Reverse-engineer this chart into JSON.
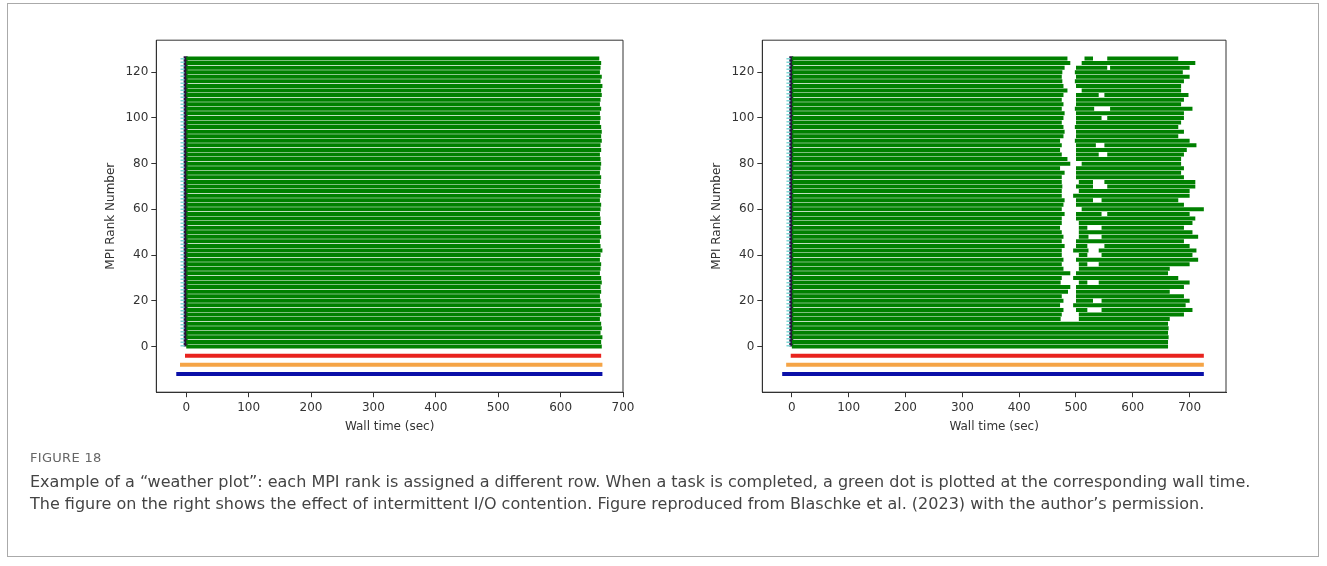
{
  "chart_data": [
    {
      "type": "line",
      "xlabel": "Wall time (sec)",
      "ylabel": "MPI Rank Number",
      "xlim": [
        -48,
        700
      ],
      "ylim": [
        -20,
        134
      ],
      "xticks": [
        0,
        100,
        200,
        300,
        400,
        500,
        600,
        700
      ],
      "yticks": [
        0,
        20,
        40,
        60,
        80,
        100,
        120
      ],
      "grid": false,
      "legend": false,
      "annotations": [
        "FIGURE 18",
        "Example of a “weather plot”: each MPI rank is assigned a different row. When a task is completed, a green dot is plotted at the corresponding wall time. The figure on the right shows the effect of intermittent I/O contention. Figure reproduced from  Blaschke et al. (2023) with the author’s permission."
      ],
      "series": [
        {
          "color": "#008000",
          "x": [
            0,
            666
          ],
          "values": [
            0,
            0
          ]
        },
        {
          "color": "#008000",
          "x": [
            0,
            665
          ],
          "values": [
            2,
            2
          ]
        },
        {
          "color": "#008000",
          "x": [
            0,
            667
          ],
          "values": [
            4,
            4
          ]
        },
        {
          "color": "#008000",
          "x": [
            0,
            664
          ],
          "values": [
            6,
            6
          ]
        },
        {
          "color": "#008000",
          "x": [
            0,
            666
          ],
          "values": [
            8,
            8
          ]
        },
        {
          "color": "#008000",
          "x": [
            0,
            665
          ],
          "values": [
            10,
            10
          ]
        },
        {
          "color": "#008000",
          "x": [
            0,
            663
          ],
          "values": [
            12,
            12
          ]
        },
        {
          "color": "#008000",
          "x": [
            0,
            665
          ],
          "values": [
            14,
            14
          ]
        },
        {
          "color": "#008000",
          "x": [
            0,
            664
          ],
          "values": [
            16,
            16
          ]
        },
        {
          "color": "#008000",
          "x": [
            0,
            666
          ],
          "values": [
            18,
            18
          ]
        },
        {
          "color": "#008000",
          "x": [
            0,
            664
          ],
          "values": [
            20,
            20
          ]
        },
        {
          "color": "#008000",
          "x": [
            0,
            663
          ],
          "values": [
            22,
            22
          ]
        },
        {
          "color": "#008000",
          "x": [
            0,
            665
          ],
          "values": [
            24,
            24
          ]
        },
        {
          "color": "#008000",
          "x": [
            0,
            664
          ],
          "values": [
            26,
            26
          ]
        },
        {
          "color": "#008000",
          "x": [
            0,
            666
          ],
          "values": [
            28,
            28
          ]
        },
        {
          "color": "#008000",
          "x": [
            0,
            665
          ],
          "values": [
            30,
            30
          ]
        },
        {
          "color": "#008000",
          "x": [
            0,
            663
          ],
          "values": [
            32,
            32
          ]
        },
        {
          "color": "#008000",
          "x": [
            0,
            664
          ],
          "values": [
            34,
            34
          ]
        },
        {
          "color": "#008000",
          "x": [
            0,
            665
          ],
          "values": [
            36,
            36
          ]
        },
        {
          "color": "#008000",
          "x": [
            0,
            663
          ],
          "values": [
            38,
            38
          ]
        },
        {
          "color": "#008000",
          "x": [
            0,
            664
          ],
          "values": [
            40,
            40
          ]
        },
        {
          "color": "#008000",
          "x": [
            0,
            667
          ],
          "values": [
            42,
            42
          ]
        },
        {
          "color": "#008000",
          "x": [
            0,
            664
          ],
          "values": [
            44,
            44
          ]
        },
        {
          "color": "#008000",
          "x": [
            0,
            663
          ],
          "values": [
            46,
            46
          ]
        },
        {
          "color": "#008000",
          "x": [
            0,
            665
          ],
          "values": [
            48,
            48
          ]
        },
        {
          "color": "#008000",
          "x": [
            0,
            664
          ],
          "values": [
            50,
            50
          ]
        },
        {
          "color": "#008000",
          "x": [
            0,
            663
          ],
          "values": [
            52,
            52
          ]
        },
        {
          "color": "#008000",
          "x": [
            0,
            665
          ],
          "values": [
            54,
            54
          ]
        },
        {
          "color": "#008000",
          "x": [
            0,
            664
          ],
          "values": [
            56,
            56
          ]
        },
        {
          "color": "#008000",
          "x": [
            0,
            663
          ],
          "values": [
            58,
            58
          ]
        },
        {
          "color": "#008000",
          "x": [
            0,
            664
          ],
          "values": [
            60,
            60
          ]
        },
        {
          "color": "#008000",
          "x": [
            0,
            665
          ],
          "values": [
            62,
            62
          ]
        },
        {
          "color": "#008000",
          "x": [
            0,
            663
          ],
          "values": [
            64,
            64
          ]
        },
        {
          "color": "#008000",
          "x": [
            0,
            664
          ],
          "values": [
            66,
            66
          ]
        },
        {
          "color": "#008000",
          "x": [
            0,
            665
          ],
          "values": [
            68,
            68
          ]
        },
        {
          "color": "#008000",
          "x": [
            0,
            663
          ],
          "values": [
            70,
            70
          ]
        },
        {
          "color": "#008000",
          "x": [
            0,
            664
          ],
          "values": [
            72,
            72
          ]
        },
        {
          "color": "#008000",
          "x": [
            0,
            665
          ],
          "values": [
            74,
            74
          ]
        },
        {
          "color": "#008000",
          "x": [
            0,
            663
          ],
          "values": [
            76,
            76
          ]
        },
        {
          "color": "#008000",
          "x": [
            0,
            664
          ],
          "values": [
            78,
            78
          ]
        },
        {
          "color": "#008000",
          "x": [
            0,
            665
          ],
          "values": [
            80,
            80
          ]
        },
        {
          "color": "#008000",
          "x": [
            0,
            664
          ],
          "values": [
            82,
            82
          ]
        },
        {
          "color": "#008000",
          "x": [
            0,
            663
          ],
          "values": [
            84,
            84
          ]
        },
        {
          "color": "#008000",
          "x": [
            0,
            665
          ],
          "values": [
            86,
            86
          ]
        },
        {
          "color": "#008000",
          "x": [
            0,
            664
          ],
          "values": [
            88,
            88
          ]
        },
        {
          "color": "#008000",
          "x": [
            0,
            666
          ],
          "values": [
            90,
            90
          ]
        },
        {
          "color": "#008000",
          "x": [
            0,
            665
          ],
          "values": [
            92,
            92
          ]
        },
        {
          "color": "#008000",
          "x": [
            0,
            666
          ],
          "values": [
            94,
            94
          ]
        },
        {
          "color": "#008000",
          "x": [
            0,
            665
          ],
          "values": [
            96,
            96
          ]
        },
        {
          "color": "#008000",
          "x": [
            0,
            663
          ],
          "values": [
            98,
            98
          ]
        },
        {
          "color": "#008000",
          "x": [
            0,
            664
          ],
          "values": [
            100,
            100
          ]
        },
        {
          "color": "#008000",
          "x": [
            0,
            663
          ],
          "values": [
            102,
            102
          ]
        },
        {
          "color": "#008000",
          "x": [
            0,
            665
          ],
          "values": [
            104,
            104
          ]
        },
        {
          "color": "#008000",
          "x": [
            0,
            663
          ],
          "values": [
            106,
            106
          ]
        },
        {
          "color": "#008000",
          "x": [
            0,
            664
          ],
          "values": [
            108,
            108
          ]
        },
        {
          "color": "#008000",
          "x": [
            0,
            666
          ],
          "values": [
            110,
            110
          ]
        },
        {
          "color": "#008000",
          "x": [
            0,
            665
          ],
          "values": [
            112,
            112
          ]
        },
        {
          "color": "#008000",
          "x": [
            0,
            667
          ],
          "values": [
            114,
            114
          ]
        },
        {
          "color": "#008000",
          "x": [
            0,
            664
          ],
          "values": [
            116,
            116
          ]
        },
        {
          "color": "#008000",
          "x": [
            0,
            666
          ],
          "values": [
            118,
            118
          ]
        },
        {
          "color": "#008000",
          "x": [
            0,
            663
          ],
          "values": [
            120,
            120
          ]
        },
        {
          "color": "#008000",
          "x": [
            0,
            664
          ],
          "values": [
            122,
            122
          ]
        },
        {
          "color": "#008000",
          "x": [
            0,
            665
          ],
          "values": [
            124,
            124
          ]
        },
        {
          "color": "#008000",
          "x": [
            0,
            662
          ],
          "values": [
            126,
            126
          ]
        },
        {
          "color": "#7fd6d6",
          "line_style": "dotted",
          "x": [
            -6,
            -6
          ],
          "values": [
            0,
            127
          ]
        },
        {
          "color": "#2a1040",
          "x": [
            -1,
            -1
          ],
          "values": [
            0,
            127
          ]
        },
        {
          "color": "#e8231e",
          "x": [
            -2,
            665
          ],
          "values": [
            -4,
            -4
          ]
        },
        {
          "color": "#f5a446",
          "x": [
            -10,
            667
          ],
          "values": [
            -8,
            -8
          ]
        },
        {
          "color": "#0a10a8",
          "x": [
            -16,
            667
          ],
          "values": [
            -12,
            -12
          ]
        }
      ]
    },
    {
      "type": "line",
      "xlabel": "Wall time (sec)",
      "ylabel": "MPI Rank Number",
      "xlim": [
        -52,
        764
      ],
      "ylim": [
        -20,
        134
      ],
      "xticks": [
        0,
        100,
        200,
        300,
        400,
        500,
        600,
        700
      ],
      "yticks": [
        0,
        20,
        40,
        60,
        80,
        100,
        120
      ],
      "grid": false,
      "legend": false,
      "series": [
        {
          "color": "#008000",
          "x": [
            0,
            662
          ],
          "values": [
            0,
            0
          ]
        },
        {
          "color": "#008000",
          "x": [
            0,
            662
          ],
          "values": [
            2,
            2
          ]
        },
        {
          "color": "#008000",
          "x": [
            0,
            663
          ],
          "values": [
            4,
            4
          ]
        },
        {
          "color": "#008000",
          "x": [
            0,
            662
          ],
          "values": [
            6,
            6
          ]
        },
        {
          "color": "#008000",
          "x": [
            0,
            663
          ],
          "values": [
            8,
            8
          ]
        },
        {
          "color": "#008000",
          "x": [
            0,
            662
          ],
          "values": [
            10,
            10
          ]
        },
        {
          "color": "#008000",
          "x": [
            0,
            473,
            null,
            505,
            665
          ],
          "values": [
            12,
            12,
            null,
            12,
            12
          ]
        },
        {
          "color": "#008000",
          "x": [
            0,
            475,
            null,
            505,
            690
          ],
          "values": [
            14,
            14,
            null,
            14,
            14
          ]
        },
        {
          "color": "#008000",
          "x": [
            0,
            478,
            null,
            500,
            520,
            null,
            545,
            705
          ],
          "values": [
            16,
            16,
            null,
            16,
            16,
            null,
            16,
            16
          ]
        },
        {
          "color": "#008000",
          "x": [
            0,
            472,
            null,
            495,
            693
          ],
          "values": [
            18,
            18,
            null,
            18,
            18
          ]
        },
        {
          "color": "#008000",
          "x": [
            0,
            478,
            null,
            500,
            530,
            null,
            545,
            700
          ],
          "values": [
            20,
            20,
            null,
            20,
            20,
            null,
            20,
            20
          ]
        },
        {
          "color": "#008000",
          "x": [
            0,
            475,
            null,
            500,
            690
          ],
          "values": [
            22,
            22,
            null,
            22,
            22
          ]
        },
        {
          "color": "#008000",
          "x": [
            0,
            486,
            null,
            500,
            665
          ],
          "values": [
            24,
            24,
            null,
            24,
            24
          ]
        },
        {
          "color": "#008000",
          "x": [
            0,
            490,
            null,
            500,
            690
          ],
          "values": [
            26,
            26,
            null,
            26,
            26
          ]
        },
        {
          "color": "#008000",
          "x": [
            0,
            473,
            null,
            505,
            520,
            null,
            540,
            700
          ],
          "values": [
            28,
            28,
            null,
            28,
            28,
            null,
            28,
            28
          ]
        },
        {
          "color": "#008000",
          "x": [
            0,
            475,
            null,
            495,
            680
          ],
          "values": [
            30,
            30,
            null,
            30,
            30
          ]
        },
        {
          "color": "#008000",
          "x": [
            0,
            490,
            null,
            500,
            662
          ],
          "values": [
            32,
            32,
            null,
            32,
            32
          ]
        },
        {
          "color": "#008000",
          "x": [
            0,
            478,
            null,
            505,
            665
          ],
          "values": [
            34,
            34,
            null,
            34,
            34
          ]
        },
        {
          "color": "#008000",
          "x": [
            0,
            475,
            null,
            505,
            520,
            null,
            540,
            700
          ],
          "values": [
            36,
            36,
            null,
            36,
            36,
            null,
            36,
            36
          ]
        },
        {
          "color": "#008000",
          "x": [
            0,
            478,
            null,
            500,
            715
          ],
          "values": [
            38,
            38,
            null,
            38,
            38
          ]
        },
        {
          "color": "#008000",
          "x": [
            0,
            475,
            null,
            505,
            520,
            null,
            545,
            705
          ],
          "values": [
            40,
            40,
            null,
            40,
            40,
            null,
            40,
            40
          ]
        },
        {
          "color": "#008000",
          "x": [
            0,
            475,
            null,
            495,
            522,
            null,
            540,
            712
          ],
          "values": [
            42,
            42,
            null,
            42,
            42,
            null,
            42,
            42
          ]
        },
        {
          "color": "#008000",
          "x": [
            0,
            480,
            null,
            500,
            520,
            null,
            550,
            700
          ],
          "values": [
            44,
            44,
            null,
            44,
            44,
            null,
            44,
            44
          ]
        },
        {
          "color": "#008000",
          "x": [
            0,
            475,
            null,
            500,
            690
          ],
          "values": [
            46,
            46,
            null,
            46,
            46
          ]
        },
        {
          "color": "#008000",
          "x": [
            0,
            478,
            null,
            505,
            522,
            null,
            545,
            715
          ],
          "values": [
            48,
            48,
            null,
            48,
            48,
            null,
            48,
            48
          ]
        },
        {
          "color": "#008000",
          "x": [
            0,
            475,
            null,
            505,
            705
          ],
          "values": [
            50,
            50,
            null,
            50,
            50
          ]
        },
        {
          "color": "#008000",
          "x": [
            0,
            472,
            null,
            505,
            520,
            null,
            545,
            690
          ],
          "values": [
            52,
            52,
            null,
            52,
            52,
            null,
            52,
            52
          ]
        },
        {
          "color": "#008000",
          "x": [
            0,
            475,
            null,
            505,
            705
          ],
          "values": [
            54,
            54,
            null,
            54,
            54
          ]
        },
        {
          "color": "#008000",
          "x": [
            0,
            475,
            null,
            500,
            710
          ],
          "values": [
            56,
            56,
            null,
            56,
            56
          ]
        },
        {
          "color": "#008000",
          "x": [
            0,
            480,
            null,
            500,
            545,
            null,
            555,
            700
          ],
          "values": [
            58,
            58,
            null,
            58,
            58,
            null,
            58,
            58
          ]
        },
        {
          "color": "#008000",
          "x": [
            0,
            475,
            null,
            510,
            725
          ],
          "values": [
            60,
            60,
            null,
            60,
            60
          ]
        },
        {
          "color": "#008000",
          "x": [
            0,
            478,
            null,
            500,
            690
          ],
          "values": [
            62,
            62,
            null,
            62,
            62
          ]
        },
        {
          "color": "#008000",
          "x": [
            0,
            480,
            null,
            500,
            530,
            null,
            545,
            680
          ],
          "values": [
            64,
            64,
            null,
            64,
            64,
            null,
            64,
            64
          ]
        },
        {
          "color": "#008000",
          "x": [
            0,
            475,
            null,
            495,
            700
          ],
          "values": [
            66,
            66,
            null,
            66,
            66
          ]
        },
        {
          "color": "#008000",
          "x": [
            0,
            475,
            null,
            505,
            700
          ],
          "values": [
            68,
            68,
            null,
            68,
            68
          ]
        },
        {
          "color": "#008000",
          "x": [
            0,
            476,
            null,
            500,
            530,
            null,
            555,
            710
          ],
          "values": [
            70,
            70,
            null,
            70,
            70,
            null,
            70,
            70
          ]
        },
        {
          "color": "#008000",
          "x": [
            0,
            475,
            null,
            505,
            530,
            null,
            550,
            710
          ],
          "values": [
            72,
            72,
            null,
            72,
            72,
            null,
            72,
            72
          ]
        },
        {
          "color": "#008000",
          "x": [
            0,
            475,
            null,
            500,
            690
          ],
          "values": [
            74,
            74,
            null,
            74,
            74
          ]
        },
        {
          "color": "#008000",
          "x": [
            0,
            480,
            null,
            500,
            685
          ],
          "values": [
            76,
            76,
            null,
            76,
            76
          ]
        },
        {
          "color": "#008000",
          "x": [
            0,
            472,
            null,
            500,
            690
          ],
          "values": [
            78,
            78,
            null,
            78,
            78
          ]
        },
        {
          "color": "#008000",
          "x": [
            0,
            490,
            null,
            510,
            685
          ],
          "values": [
            80,
            80,
            null,
            80,
            80
          ]
        },
        {
          "color": "#008000",
          "x": [
            0,
            485,
            null,
            500,
            685
          ],
          "values": [
            82,
            82,
            null,
            82,
            82
          ]
        },
        {
          "color": "#008000",
          "x": [
            0,
            475,
            null,
            500,
            540,
            null,
            555,
            690
          ],
          "values": [
            84,
            84,
            null,
            84,
            84,
            null,
            84,
            84
          ]
        },
        {
          "color": "#008000",
          "x": [
            0,
            472,
            null,
            500,
            695
          ],
          "values": [
            86,
            86,
            null,
            86,
            86
          ]
        },
        {
          "color": "#008000",
          "x": [
            0,
            475,
            null,
            500,
            535,
            null,
            550,
            712
          ],
          "values": [
            88,
            88,
            null,
            88,
            88,
            null,
            88,
            88
          ]
        },
        {
          "color": "#008000",
          "x": [
            0,
            472,
            null,
            498,
            700
          ],
          "values": [
            90,
            90,
            null,
            90,
            90
          ]
        },
        {
          "color": "#008000",
          "x": [
            0,
            478,
            null,
            500,
            680
          ],
          "values": [
            92,
            92,
            null,
            92,
            92
          ]
        },
        {
          "color": "#008000",
          "x": [
            0,
            480,
            null,
            500,
            690
          ],
          "values": [
            94,
            94,
            null,
            94,
            94
          ]
        },
        {
          "color": "#008000",
          "x": [
            0,
            478,
            null,
            498,
            680
          ],
          "values": [
            96,
            96,
            null,
            96,
            96
          ]
        },
        {
          "color": "#008000",
          "x": [
            0,
            475,
            null,
            500,
            685
          ],
          "values": [
            98,
            98,
            null,
            98,
            98
          ]
        },
        {
          "color": "#008000",
          "x": [
            0,
            478,
            null,
            500,
            545,
            null,
            555,
            690
          ],
          "values": [
            100,
            100,
            null,
            100,
            100,
            null,
            100,
            100
          ]
        },
        {
          "color": "#008000",
          "x": [
            0,
            480,
            null,
            500,
            690
          ],
          "values": [
            102,
            102,
            null,
            102,
            102
          ]
        },
        {
          "color": "#008000",
          "x": [
            0,
            475,
            null,
            498,
            532,
            null,
            560,
            705
          ],
          "values": [
            104,
            104,
            null,
            104,
            104,
            null,
            104,
            104
          ]
        },
        {
          "color": "#008000",
          "x": [
            0,
            478,
            null,
            500,
            685
          ],
          "values": [
            106,
            106,
            null,
            106,
            106
          ]
        },
        {
          "color": "#008000",
          "x": [
            0,
            475,
            null,
            500,
            690
          ],
          "values": [
            108,
            108,
            null,
            108,
            108
          ]
        },
        {
          "color": "#008000",
          "x": [
            0,
            478,
            null,
            500,
            540,
            null,
            550,
            698
          ],
          "values": [
            110,
            110,
            null,
            110,
            110,
            null,
            110,
            110
          ]
        },
        {
          "color": "#008000",
          "x": [
            0,
            485,
            null,
            510,
            685
          ],
          "values": [
            112,
            112,
            null,
            112,
            112
          ]
        },
        {
          "color": "#008000",
          "x": [
            0,
            478,
            null,
            500,
            685
          ],
          "values": [
            114,
            114,
            null,
            114,
            114
          ]
        },
        {
          "color": "#008000",
          "x": [
            0,
            476,
            null,
            498,
            690
          ],
          "values": [
            116,
            116,
            null,
            116,
            116
          ]
        },
        {
          "color": "#008000",
          "x": [
            0,
            475,
            null,
            500,
            700
          ],
          "values": [
            118,
            118,
            null,
            118,
            118
          ]
        },
        {
          "color": "#008000",
          "x": [
            0,
            476,
            null,
            498,
            688
          ],
          "values": [
            120,
            120,
            null,
            120,
            120
          ]
        },
        {
          "color": "#008000",
          "x": [
            0,
            480,
            null,
            500,
            555,
            null,
            560,
            700
          ],
          "values": [
            122,
            122,
            null,
            122,
            122,
            null,
            122,
            122
          ]
        },
        {
          "color": "#008000",
          "x": [
            0,
            490,
            null,
            510,
            710
          ],
          "values": [
            124,
            124,
            null,
            124,
            124
          ]
        },
        {
          "color": "#008000",
          "x": [
            0,
            485,
            null,
            515,
            530,
            null,
            555,
            680
          ],
          "values": [
            126,
            126,
            null,
            126,
            126,
            null,
            126,
            126
          ]
        },
        {
          "color": "#7fd6d6",
          "line_style": "dotted",
          "x": [
            -6,
            -6
          ],
          "values": [
            0,
            127
          ]
        },
        {
          "color": "#2a1040",
          "x": [
            -1,
            -1
          ],
          "values": [
            0,
            127
          ]
        },
        {
          "color": "#e8231e",
          "x": [
            -2,
            725
          ],
          "values": [
            -4,
            -4
          ]
        },
        {
          "color": "#f5a446",
          "x": [
            -10,
            725
          ],
          "values": [
            -8,
            -8
          ]
        },
        {
          "color": "#0a10a8",
          "x": [
            -17,
            725
          ],
          "values": [
            -12,
            -12
          ]
        }
      ]
    }
  ]
}
